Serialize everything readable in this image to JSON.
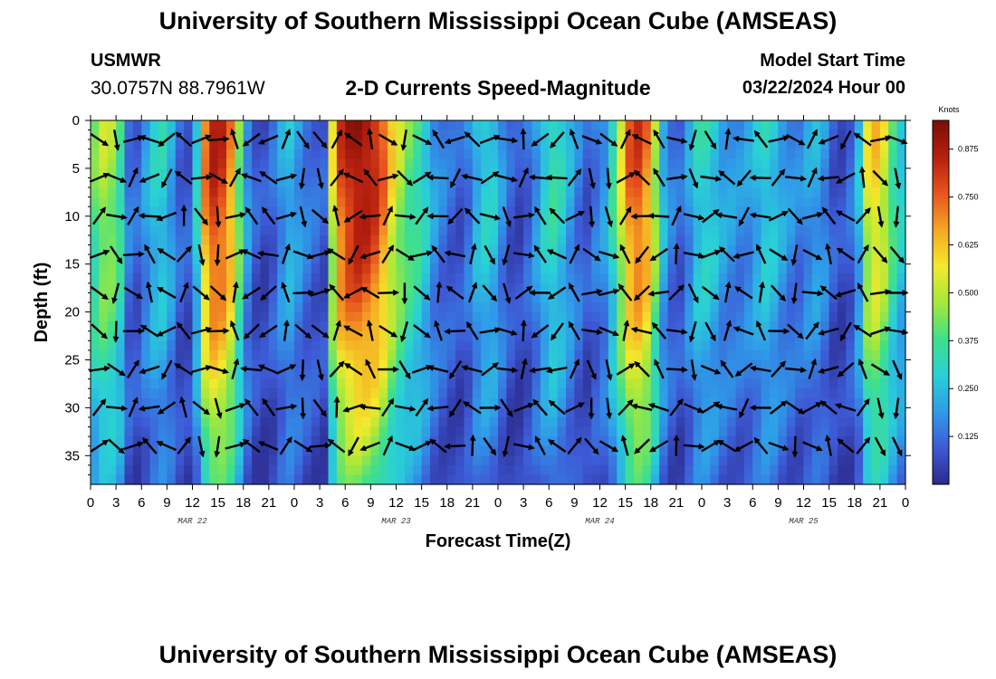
{
  "header": {
    "title": "University of Southern Mississippi Ocean Cube (AMSEAS)",
    "station": "USMWR",
    "coordinates": "30.0757N  88.7961W",
    "chart_title": "2-D Currents Speed-Magnitude",
    "start_label": "Model Start Time",
    "start_value": "03/22/2024 Hour 00"
  },
  "footer": {
    "title": "University of Southern Mississippi Ocean Cube (AMSEAS)"
  },
  "colors": {
    "arrow": "#000000",
    "colormap": [
      "#2b2a8c",
      "#3d5ad6",
      "#2f9be8",
      "#29d0d6",
      "#3fe08a",
      "#a6e83a",
      "#f3e92c",
      "#f5a623",
      "#e8531e",
      "#b51f0f",
      "#7a0f07"
    ]
  },
  "chart_data": {
    "type": "heatmap",
    "title": "2-D Currents Speed-Magnitude",
    "xlabel": "Forecast Time(Z)",
    "ylabel": "Depth (ft)",
    "x_range_hours": [
      0,
      96
    ],
    "y_range_ft": [
      0,
      38
    ],
    "x_tick_labels": [
      "0",
      "3",
      "6",
      "9",
      "12",
      "15",
      "18",
      "21",
      "0",
      "3",
      "6",
      "9",
      "12",
      "15",
      "18",
      "21",
      "0",
      "3",
      "6",
      "9",
      "12",
      "15",
      "18",
      "21",
      "0",
      "3",
      "6",
      "9",
      "12",
      "15",
      "18",
      "21",
      "0"
    ],
    "y_ticks": [
      0,
      5,
      10,
      15,
      20,
      25,
      30,
      35
    ],
    "y_tick_labels": [
      "0",
      "5",
      "10",
      "15",
      "20",
      "25",
      "30",
      "35"
    ],
    "date_labels": [
      {
        "label": "MAR 22",
        "hour": 12
      },
      {
        "label": "MAR 23",
        "hour": 36
      },
      {
        "label": "MAR 24",
        "hour": 60
      },
      {
        "label": "MAR 25",
        "hour": 84
      }
    ],
    "colorbar": {
      "unit": "Knots",
      "min": 0,
      "max": 0.95,
      "ticks": [
        0.125,
        0.25,
        0.375,
        0.5,
        0.625,
        0.75,
        0.875
      ],
      "tick_labels": [
        "0.125",
        "0.250",
        "0.375",
        "0.500",
        "0.625",
        "0.750",
        "0.875"
      ]
    },
    "speed_profile_by_hour": [
      {
        "hour": 0,
        "knots": 0.42
      },
      {
        "hour": 1,
        "knots": 0.5
      },
      {
        "hour": 2,
        "knots": 0.48
      },
      {
        "hour": 3,
        "knots": 0.38
      },
      {
        "hour": 4,
        "knots": 0.15
      },
      {
        "hour": 5,
        "knots": 0.12
      },
      {
        "hour": 6,
        "knots": 0.2
      },
      {
        "hour": 7,
        "knots": 0.28
      },
      {
        "hour": 8,
        "knots": 0.3
      },
      {
        "hour": 9,
        "knots": 0.22
      },
      {
        "hour": 10,
        "knots": 0.12
      },
      {
        "hour": 11,
        "knots": 0.1
      },
      {
        "hour": 12,
        "knots": 0.3
      },
      {
        "hour": 13,
        "knots": 0.72
      },
      {
        "hour": 14,
        "knots": 0.85
      },
      {
        "hour": 15,
        "knots": 0.82
      },
      {
        "hour": 16,
        "knots": 0.7
      },
      {
        "hour": 17,
        "knots": 0.45
      },
      {
        "hour": 18,
        "knots": 0.2
      },
      {
        "hour": 19,
        "knots": 0.1
      },
      {
        "hour": 20,
        "knots": 0.08
      },
      {
        "hour": 21,
        "knots": 0.12
      },
      {
        "hour": 22,
        "knots": 0.2
      },
      {
        "hour": 23,
        "knots": 0.25
      },
      {
        "hour": 24,
        "knots": 0.2
      },
      {
        "hour": 25,
        "knots": 0.15
      },
      {
        "hour": 26,
        "knots": 0.12
      },
      {
        "hour": 27,
        "knots": 0.1
      },
      {
        "hour": 28,
        "knots": 0.55
      },
      {
        "hour": 29,
        "knots": 0.8
      },
      {
        "hour": 30,
        "knots": 0.88
      },
      {
        "hour": 31,
        "knots": 0.92
      },
      {
        "hour": 32,
        "knots": 0.9
      },
      {
        "hour": 33,
        "knots": 0.85
      },
      {
        "hour": 34,
        "knots": 0.75
      },
      {
        "hour": 35,
        "knots": 0.6
      },
      {
        "hour": 36,
        "knots": 0.5
      },
      {
        "hour": 37,
        "knots": 0.42
      },
      {
        "hour": 38,
        "knots": 0.38
      },
      {
        "hour": 39,
        "knots": 0.3
      },
      {
        "hour": 40,
        "knots": 0.2
      },
      {
        "hour": 41,
        "knots": 0.15
      },
      {
        "hour": 42,
        "knots": 0.12
      },
      {
        "hour": 43,
        "knots": 0.1
      },
      {
        "hour": 44,
        "knots": 0.15
      },
      {
        "hour": 45,
        "knots": 0.25
      },
      {
        "hour": 46,
        "knots": 0.3
      },
      {
        "hour": 47,
        "knots": 0.28
      },
      {
        "hour": 48,
        "knots": 0.18
      },
      {
        "hour": 49,
        "knots": 0.1
      },
      {
        "hour": 50,
        "knots": 0.08
      },
      {
        "hour": 51,
        "knots": 0.12
      },
      {
        "hour": 52,
        "knots": 0.2
      },
      {
        "hour": 53,
        "knots": 0.3
      },
      {
        "hour": 54,
        "knots": 0.35
      },
      {
        "hour": 55,
        "knots": 0.3
      },
      {
        "hour": 56,
        "knots": 0.22
      },
      {
        "hour": 57,
        "knots": 0.15
      },
      {
        "hour": 58,
        "knots": 0.1
      },
      {
        "hour": 59,
        "knots": 0.15
      },
      {
        "hour": 60,
        "knots": 0.2
      },
      {
        "hour": 61,
        "knots": 0.35
      },
      {
        "hour": 62,
        "knots": 0.55
      },
      {
        "hour": 63,
        "knots": 0.75
      },
      {
        "hour": 64,
        "knots": 0.8
      },
      {
        "hour": 65,
        "knots": 0.72
      },
      {
        "hour": 66,
        "knots": 0.5
      },
      {
        "hour": 67,
        "knots": 0.25
      },
      {
        "hour": 68,
        "knots": 0.15
      },
      {
        "hour": 69,
        "knots": 0.12
      },
      {
        "hour": 70,
        "knots": 0.2
      },
      {
        "hour": 71,
        "knots": 0.3
      },
      {
        "hour": 72,
        "knots": 0.32
      },
      {
        "hour": 73,
        "knots": 0.28
      },
      {
        "hour": 74,
        "knots": 0.22
      },
      {
        "hour": 75,
        "knots": 0.2
      },
      {
        "hour": 76,
        "knots": 0.18
      },
      {
        "hour": 77,
        "knots": 0.2
      },
      {
        "hour": 78,
        "knots": 0.25
      },
      {
        "hour": 79,
        "knots": 0.3
      },
      {
        "hour": 80,
        "knots": 0.28
      },
      {
        "hour": 81,
        "knots": 0.22
      },
      {
        "hour": 82,
        "knots": 0.18
      },
      {
        "hour": 83,
        "knots": 0.16
      },
      {
        "hour": 84,
        "knots": 0.2
      },
      {
        "hour": 85,
        "knots": 0.22
      },
      {
        "hour": 86,
        "knots": 0.18
      },
      {
        "hour": 87,
        "knots": 0.1
      },
      {
        "hour": 88,
        "knots": 0.08
      },
      {
        "hour": 89,
        "knots": 0.12
      },
      {
        "hour": 90,
        "knots": 0.25
      },
      {
        "hour": 91,
        "knots": 0.55
      },
      {
        "hour": 92,
        "knots": 0.62
      },
      {
        "hour": 93,
        "knots": 0.55
      },
      {
        "hour": 94,
        "knots": 0.4
      },
      {
        "hour": 95,
        "knots": 0.3
      },
      {
        "hour": 96,
        "knots": 0.25
      }
    ]
  }
}
